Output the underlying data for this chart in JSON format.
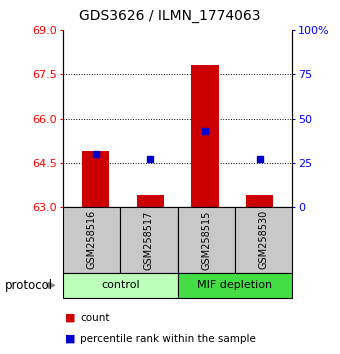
{
  "title": "GDS3626 / ILMN_1774063",
  "samples": [
    "GSM258516",
    "GSM258517",
    "GSM258515",
    "GSM258530"
  ],
  "bar_tops": [
    64.9,
    63.4,
    67.8,
    63.4
  ],
  "bar_base": 63.0,
  "percentile_values": [
    30.0,
    27.0,
    43.0,
    27.0
  ],
  "ylim_left": [
    63.0,
    69.0
  ],
  "ylim_right": [
    0.0,
    100.0
  ],
  "yticks_left": [
    63.0,
    64.5,
    66.0,
    67.5,
    69.0
  ],
  "yticks_right": [
    0,
    25,
    50,
    75,
    100
  ],
  "ytick_right_labels": [
    "0",
    "25",
    "50",
    "75",
    "100%"
  ],
  "bar_color": "#cc0000",
  "marker_color": "#0000cc",
  "bar_width": 0.5,
  "group_labels": [
    "control",
    "MIF depletion"
  ],
  "group_sample_counts": [
    2,
    2
  ],
  "group_colors_light": "#bbffbb",
  "group_colors_dark": "#44dd44",
  "sample_box_color": "#c8c8c8",
  "legend_count_label": "count",
  "legend_pct_label": "percentile rank within the sample",
  "protocol_label": "protocol",
  "title_fontsize": 10,
  "tick_fontsize": 8,
  "sample_fontsize": 7,
  "group_fontsize": 8,
  "legend_fontsize": 7.5
}
